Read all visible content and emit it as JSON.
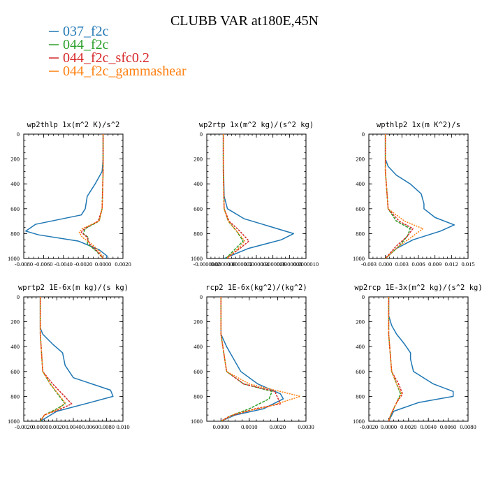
{
  "title": "CLUBB VAR at180E,45N",
  "colors": {
    "s1": "#1f77b4",
    "s2": "#2ca02c",
    "s3": "#d62728",
    "s4": "#ff7f0e"
  },
  "legend": [
    {
      "name": "037_f2c",
      "color": "#1f77b4"
    },
    {
      "name": "044_f2c",
      "color": "#2ca02c"
    },
    {
      "name": "044_f2c_sfc0.2",
      "color": "#d62728"
    },
    {
      "name": "044_f2c_gammashear",
      "color": "#ff7f0e"
    }
  ],
  "chart_data": [
    {
      "type": "line",
      "title": "wp2thlp  1x(m^2 K)/s^2",
      "xlim": [
        -0.008,
        0.002
      ],
      "ylim": [
        1000,
        0
      ],
      "xticks": [
        -0.008,
        -0.006,
        -0.004,
        -0.002,
        0.0,
        0.002
      ],
      "xticklabels": [
        "-0.0080",
        "-0.0060",
        "-0.0040",
        "-0.0020",
        "0.0000",
        "0.0020"
      ],
      "yticks": [
        0,
        200,
        400,
        600,
        800,
        1000
      ],
      "yticklabels": [
        "0",
        "200",
        "400",
        "600",
        "800",
        "1000"
      ],
      "series": [
        {
          "x": [
            0.0,
            0.0,
            -0.0001,
            -0.0008,
            -0.0016,
            -0.0018,
            -0.0022,
            -0.0068,
            -0.0078,
            -0.0065,
            -0.0025,
            -0.0004,
            0.0004,
            0.0003
          ],
          "y": [
            0,
            200,
            300,
            400,
            500,
            600,
            650,
            725,
            780,
            810,
            860,
            930,
            980,
            1000
          ]
        },
        {
          "x": [
            0.0,
            0.0,
            -0.0001,
            -0.0004,
            -0.0018,
            -0.002,
            -0.0015,
            -0.0016,
            -0.0007,
            0.0
          ],
          "y": [
            0,
            300,
            600,
            700,
            760,
            800,
            830,
            880,
            940,
            1000
          ]
        },
        {
          "x": [
            0.0,
            0.0,
            -0.0001,
            -0.0005,
            -0.0019,
            -0.0022,
            -0.0016,
            -0.0014,
            -0.0006,
            0.0
          ],
          "y": [
            0,
            300,
            600,
            700,
            760,
            790,
            830,
            880,
            940,
            1000
          ]
        },
        {
          "x": [
            0.0,
            0.0,
            -0.0001,
            -0.0004,
            -0.0021,
            -0.0024,
            -0.0021,
            -0.0012,
            -0.0004,
            0.0
          ],
          "y": [
            0,
            300,
            600,
            700,
            760,
            790,
            830,
            880,
            940,
            1000
          ]
        }
      ]
    },
    {
      "type": "line",
      "title": "wp2rtp  1x(m^2 kg)/(s^2 kg)",
      "xlim": [
        -2e-07,
        1e-06
      ],
      "ylim": [
        1000,
        0
      ],
      "xticks": [
        -2e-07,
        0,
        2e-07,
        4e-07,
        6e-07,
        8e-07,
        1e-06
      ],
      "xticklabels": [
        "-0.0000002",
        "0.0000000",
        "0.0000002",
        "0.0000004",
        "0.0000006",
        "0.0000008",
        "0.0000010"
      ],
      "yticks": [
        0,
        200,
        400,
        600,
        800,
        1000
      ],
      "yticklabels": [
        "0",
        "200",
        "400",
        "600",
        "800",
        "1000"
      ],
      "series": [
        {
          "x": [
            0.0,
            0.0,
            1e-08,
            5e-08,
            2.5e-07,
            6e-07,
            8.5e-07,
            7e-07,
            3e-07,
            1e-08
          ],
          "y": [
            0,
            200,
            500,
            600,
            680,
            750,
            800,
            850,
            920,
            1000
          ]
        },
        {
          "x": [
            0.0,
            0.0,
            1e-08,
            6e-08,
            1.6e-07,
            2.4e-07,
            1.5e-07,
            3e-08
          ],
          "y": [
            0,
            300,
            600,
            700,
            780,
            860,
            920,
            1000
          ]
        },
        {
          "x": [
            0.0,
            0.0,
            1e-08,
            7e-08,
            2e-07,
            3.1e-07,
            2e-07,
            4e-08
          ],
          "y": [
            0,
            300,
            600,
            700,
            780,
            860,
            920,
            1000
          ]
        },
        {
          "x": [
            0.0,
            0.0,
            1e-08,
            6e-08,
            1.6e-07,
            2.6e-07,
            1.8e-07,
            4e-08
          ],
          "y": [
            0,
            300,
            600,
            700,
            780,
            860,
            920,
            1000
          ]
        }
      ]
    },
    {
      "type": "line",
      "title": "wpthlp2  1x(m K^2)/s",
      "xlim": [
        -0.003,
        0.015
      ],
      "ylim": [
        1000,
        0
      ],
      "xticks": [
        -0.003,
        0.0,
        0.003,
        0.006,
        0.009,
        0.012,
        0.015
      ],
      "xticklabels": [
        "-0.003",
        "0.000",
        "0.003",
        "0.006",
        "0.009",
        "0.012",
        "0.015"
      ],
      "yticks": [
        0,
        200,
        400,
        600,
        800,
        1000
      ],
      "yticklabels": [
        "0",
        "200",
        "400",
        "600",
        "800",
        "1000"
      ],
      "series": [
        {
          "x": [
            0.0,
            0.0,
            0.0005,
            0.002,
            0.0045,
            0.0065,
            0.007,
            0.007,
            0.009,
            0.0125,
            0.01,
            0.005,
            0.002,
            0.0
          ],
          "y": [
            0,
            200,
            260,
            330,
            400,
            480,
            560,
            600,
            670,
            730,
            780,
            850,
            920,
            1000
          ]
        },
        {
          "x": [
            0.0,
            0.0,
            0.0005,
            0.002,
            0.0045,
            0.004,
            0.0025,
            0.0
          ],
          "y": [
            0,
            300,
            600,
            700,
            760,
            820,
            900,
            1000
          ]
        },
        {
          "x": [
            0.0,
            0.0,
            0.0005,
            0.0025,
            0.005,
            0.004,
            0.002,
            0.0
          ],
          "y": [
            0,
            300,
            600,
            700,
            760,
            820,
            900,
            1000
          ]
        },
        {
          "x": [
            0.0,
            0.0,
            0.0005,
            0.0035,
            0.0068,
            0.005,
            0.0025,
            0.0
          ],
          "y": [
            0,
            300,
            600,
            700,
            760,
            820,
            900,
            1000
          ]
        }
      ]
    },
    {
      "type": "line",
      "title": "wprtp2  1E-6x(m kg)/(s kg)",
      "xlim": [
        -0.002,
        0.01
      ],
      "ylim": [
        1000,
        0
      ],
      "xticks": [
        -0.002,
        0.0,
        0.002,
        0.004,
        0.006,
        0.008,
        0.01
      ],
      "xticklabels": [
        "-0.0020",
        "0.0000",
        "0.0020",
        "0.0040",
        "0.0060",
        "0.0080",
        "0.010"
      ],
      "yticks": [
        0,
        200,
        400,
        600,
        800,
        1000
      ],
      "yticklabels": [
        "0",
        "200",
        "400",
        "600",
        "800",
        "1000"
      ],
      "series": [
        {
          "x": [
            0.0,
            0.0,
            0.0003,
            0.0015,
            0.0027,
            0.003,
            0.004,
            0.0085,
            0.0088,
            0.006,
            0.002,
            0.0
          ],
          "y": [
            0,
            250,
            300,
            380,
            450,
            550,
            650,
            750,
            800,
            850,
            920,
            1000
          ]
        },
        {
          "x": [
            0.0,
            0.0,
            0.0003,
            0.0012,
            0.003,
            0.002,
            0.0005,
            0.0
          ],
          "y": [
            0,
            300,
            600,
            700,
            860,
            900,
            950,
            1000
          ]
        },
        {
          "x": [
            0.0,
            0.0,
            0.0003,
            0.0015,
            0.0038,
            0.0025,
            0.0005,
            0.0
          ],
          "y": [
            0,
            300,
            600,
            700,
            860,
            900,
            950,
            1000
          ]
        },
        {
          "x": [
            0.0,
            0.0,
            0.0003,
            0.0012,
            0.003,
            0.0023,
            0.0005,
            0.0
          ],
          "y": [
            0,
            300,
            600,
            700,
            850,
            900,
            950,
            1000
          ]
        }
      ]
    },
    {
      "type": "line",
      "title": "rcp2  1E-6x(kg^2)/(kg^2)",
      "xlim": [
        -0.0005,
        0.003
      ],
      "ylim": [
        1000,
        0
      ],
      "xticks": [
        0.0,
        0.001,
        0.002,
        0.003
      ],
      "xticklabels": [
        "0.0000",
        "0.0010",
        "0.0020",
        "0.0030"
      ],
      "yticks": [
        0,
        200,
        400,
        600,
        800,
        1000
      ],
      "yticklabels": [
        "0",
        "200",
        "400",
        "600",
        "800",
        "1000"
      ],
      "series": [
        {
          "x": [
            0.0,
            0.0,
            0.0002,
            0.0005,
            0.0007,
            0.0013,
            0.0021,
            0.0022,
            0.0015,
            0.0005,
            0.0
          ],
          "y": [
            0,
            300,
            400,
            520,
            600,
            700,
            780,
            820,
            900,
            950,
            1000
          ]
        },
        {
          "x": [
            0.0,
            0.0,
            0.0002,
            0.0008,
            0.0018,
            0.0017,
            0.001,
            0.0003,
            0.0
          ],
          "y": [
            0,
            300,
            600,
            700,
            760,
            820,
            900,
            960,
            1000
          ]
        },
        {
          "x": [
            0.0,
            0.0,
            0.0002,
            0.0008,
            0.0019,
            0.0021,
            0.0012,
            0.0003,
            0.0
          ],
          "y": [
            0,
            300,
            600,
            700,
            760,
            860,
            900,
            960,
            1000
          ]
        },
        {
          "x": [
            0.0,
            0.0,
            0.0002,
            0.001,
            0.0028,
            0.0017,
            0.0005,
            0.0
          ],
          "y": [
            0,
            300,
            600,
            700,
            800,
            880,
            940,
            1000
          ]
        }
      ]
    },
    {
      "type": "line",
      "title": "wp2rcp  1E-3x(m^2 kg)/(s^2 kg)",
      "xlim": [
        -0.002,
        0.008
      ],
      "ylim": [
        1000,
        0
      ],
      "xticks": [
        -0.002,
        0.0,
        0.002,
        0.004,
        0.006,
        0.008
      ],
      "xticklabels": [
        "-0.0020",
        "0.0000",
        "0.0020",
        "0.0040",
        "0.0060",
        "0.0080"
      ],
      "yticks": [
        0,
        200,
        400,
        600,
        800,
        1000
      ],
      "yticklabels": [
        "0",
        "200",
        "400",
        "600",
        "800",
        "1000"
      ],
      "series": [
        {
          "x": [
            0.0,
            0.0,
            0.0003,
            0.0008,
            0.0016,
            0.0022,
            0.0022,
            0.0025,
            0.0045,
            0.0065,
            0.0065,
            0.003,
            0.0005,
            0.0
          ],
          "y": [
            0,
            150,
            230,
            300,
            380,
            450,
            500,
            600,
            700,
            760,
            800,
            850,
            920,
            1000
          ]
        },
        {
          "x": [
            0.0,
            0.0,
            0.0003,
            0.0008,
            0.0012,
            0.0008,
            0.0002,
            0.0
          ],
          "y": [
            0,
            300,
            600,
            700,
            780,
            850,
            950,
            1000
          ]
        },
        {
          "x": [
            0.0,
            0.0,
            0.0003,
            0.001,
            0.0014,
            0.0008,
            0.0002,
            0.0
          ],
          "y": [
            0,
            300,
            600,
            700,
            780,
            850,
            950,
            1000
          ]
        },
        {
          "x": [
            0.0,
            0.0,
            0.0003,
            0.0008,
            0.0013,
            0.0008,
            0.0002,
            0.0
          ],
          "y": [
            0,
            300,
            600,
            700,
            780,
            850,
            950,
            1000
          ]
        }
      ]
    }
  ]
}
